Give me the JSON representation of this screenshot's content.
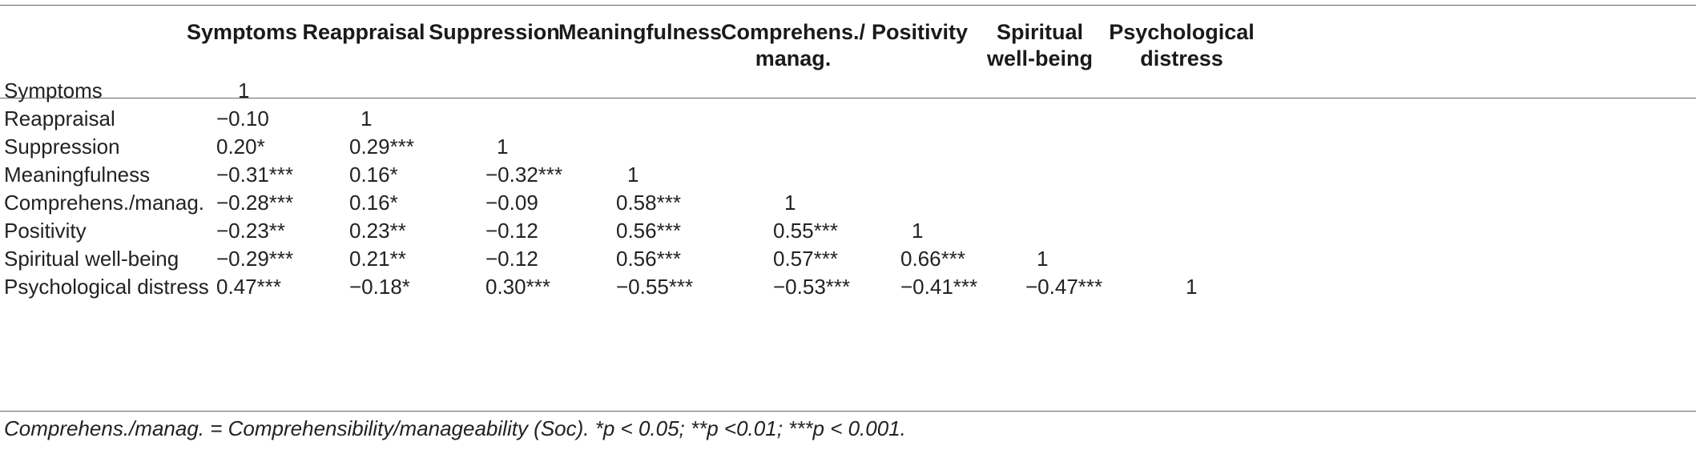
{
  "table": {
    "column_headers": [
      "Symptoms",
      "Reappraisal",
      "Suppression",
      "Meaningfulness",
      "Comprehens./\nmanag.",
      "Positivity",
      "Spiritual\nwell-being",
      "Psychological\ndistress"
    ],
    "rows": [
      {
        "label": "Symptoms",
        "cells": [
          "1"
        ]
      },
      {
        "label": "Reappraisal",
        "cells": [
          "−0.10",
          "1"
        ]
      },
      {
        "label": "Suppression",
        "cells": [
          "0.20*",
          "0.29***",
          "1"
        ]
      },
      {
        "label": "Meaningfulness",
        "cells": [
          "−0.31***",
          "0.16*",
          "−0.32***",
          "1"
        ]
      },
      {
        "label": "Comprehens./manag.",
        "cells": [
          "−0.28***",
          "0.16*",
          "−0.09",
          "0.58***",
          "1"
        ]
      },
      {
        "label": "Positivity",
        "cells": [
          "−0.23**",
          "0.23**",
          "−0.12",
          "0.56***",
          "0.55***",
          "1"
        ]
      },
      {
        "label": "Spiritual well-being",
        "cells": [
          "−0.29***",
          "0.21**",
          "−0.12",
          "0.56***",
          "0.57***",
          "0.66***",
          "1"
        ]
      },
      {
        "label": "Psychological distress",
        "cells": [
          "0.47***",
          "−0.18*",
          "0.30***",
          "−0.55***",
          "−0.53***",
          "−0.41***",
          "−0.47***",
          "1"
        ]
      }
    ],
    "footnote": "Comprehens./manag. = Comprehensibility/manageability (Soc). *p < 0.05; **p <0.01; ***p < 0.001."
  }
}
